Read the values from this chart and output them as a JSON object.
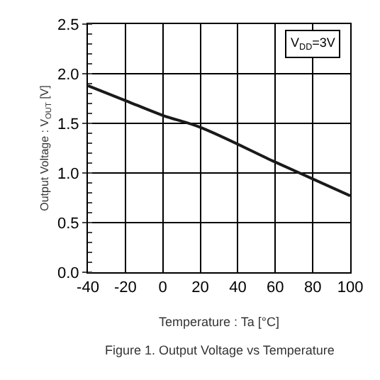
{
  "chart_data": {
    "type": "line",
    "x": [
      -40,
      -20,
      0,
      20,
      60,
      80,
      100
    ],
    "series": [
      {
        "color": "#1a1a1a",
        "values": [
          1.88,
          1.73,
          1.58,
          1.46,
          1.11,
          0.94,
          0.77
        ]
      }
    ],
    "xlabel": "Temperature : Ta [°C]",
    "ylabel": "Output Voltage : V$_{OUT}$ [V]",
    "xlim": [
      -40,
      100
    ],
    "xticks": [
      -40,
      -20,
      0,
      20,
      40,
      60,
      80,
      100
    ],
    "ylim": [
      0,
      2.5
    ],
    "yticks": [
      {
        "value": 0,
        "label": "0.0"
      },
      0.5,
      {
        "value": 1,
        "label": "1.0"
      },
      1.5,
      {
        "value": 2,
        "label": "2.0"
      },
      2.5
    ],
    "grid": true,
    "legend": false,
    "marker": "none",
    "line_style": "solid",
    "annotations": [
      {
        "text": "V$_{DD}$=3V",
        "x": 80,
        "y": 2.3
      },
      "Figure 1. Output Voltage vs Temperature"
    ]
  }
}
